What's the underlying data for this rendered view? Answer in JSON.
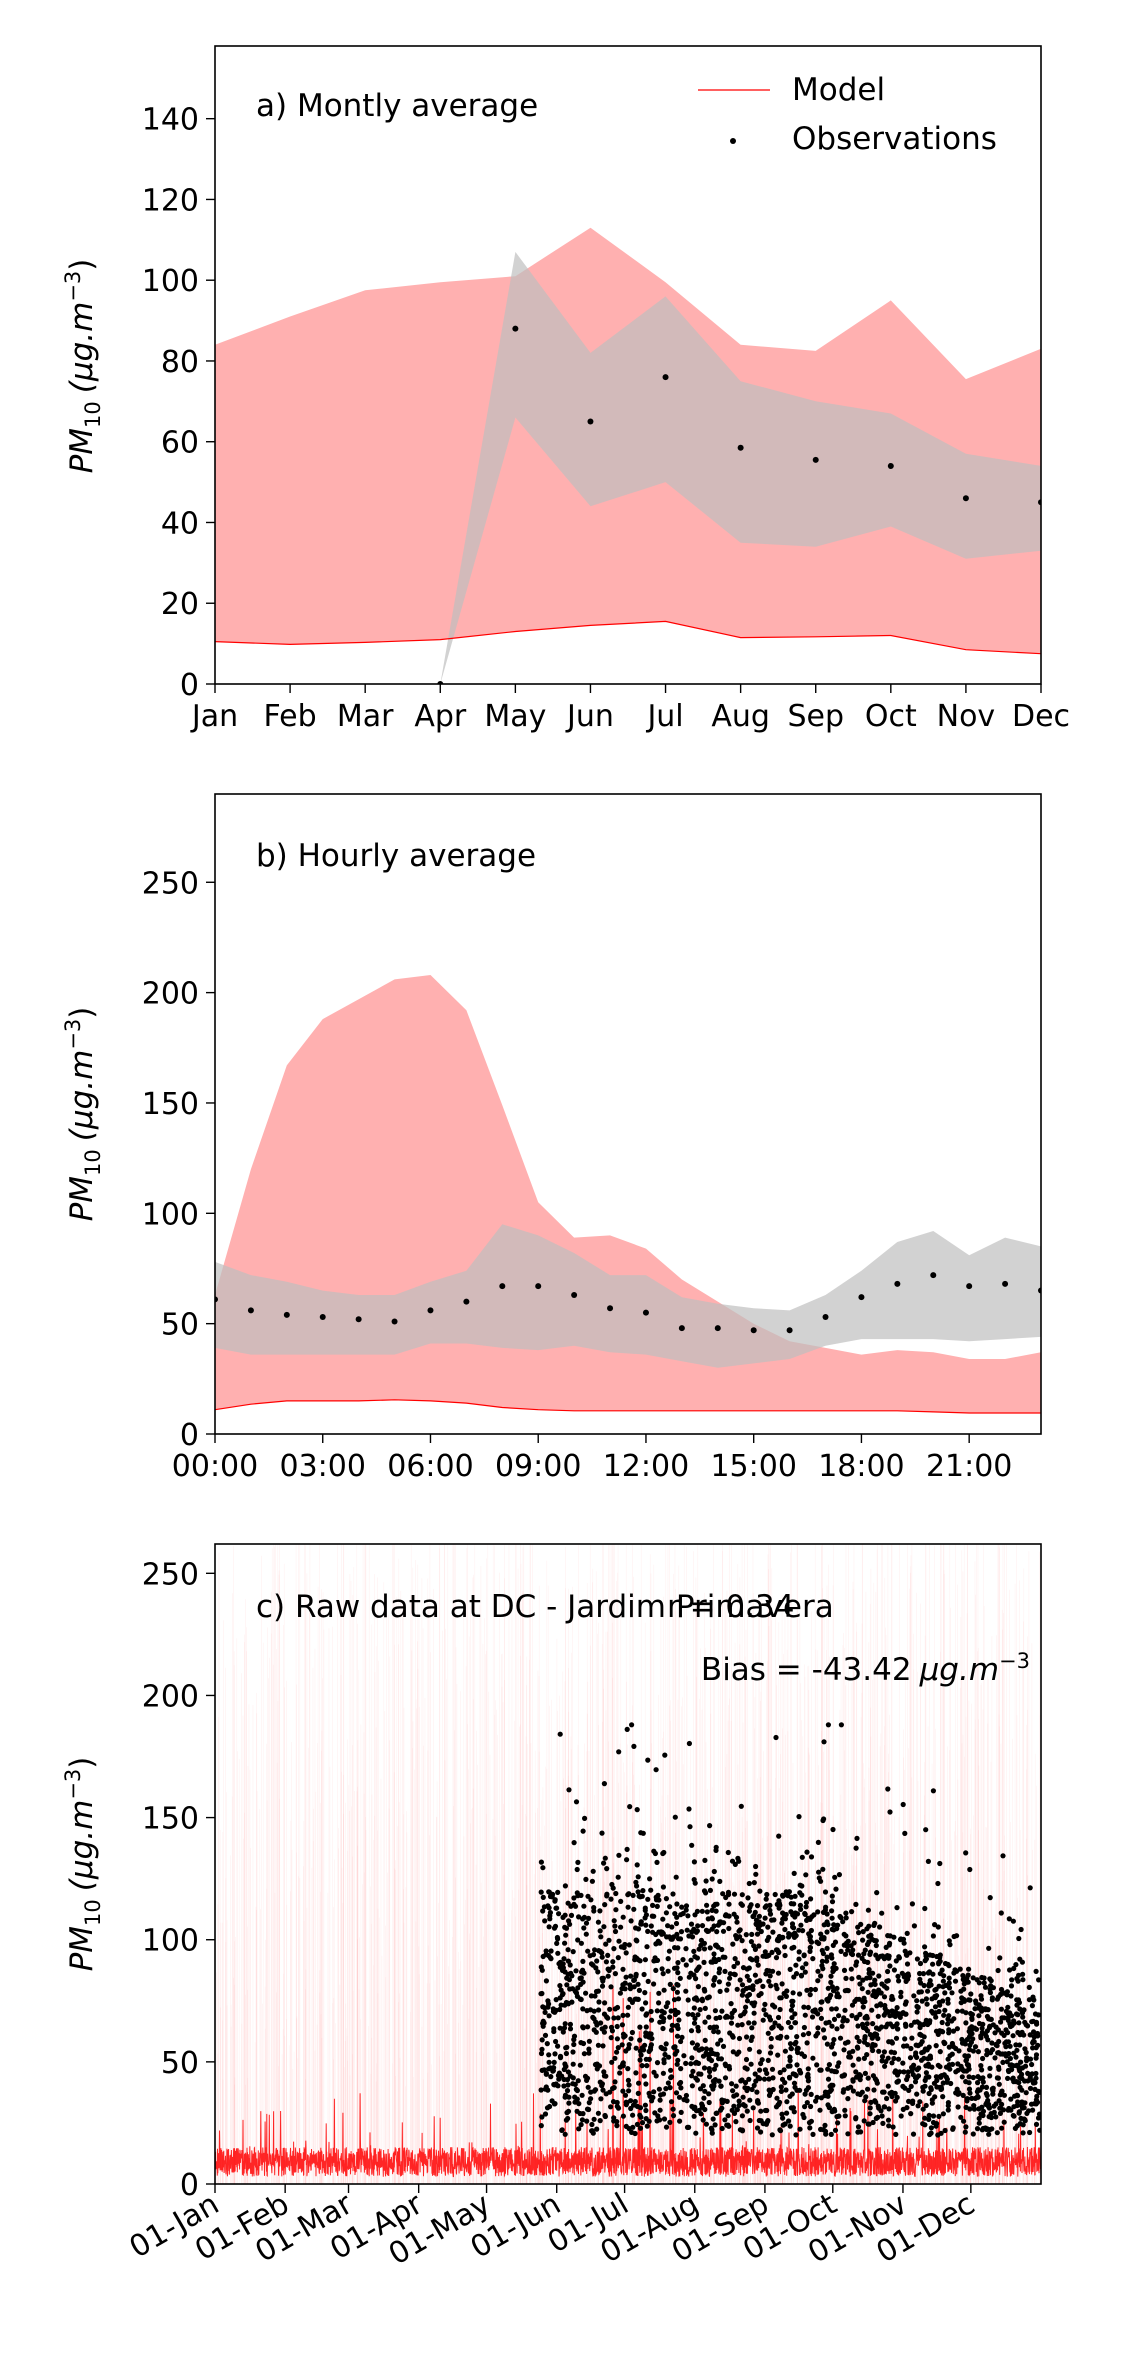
{
  "colors": {
    "model": "#ff0000",
    "model_band": "#ffb0b0",
    "obs_band": "#bfbfbf",
    "observations": "#000000"
  },
  "chart_data": [
    {
      "type": "area",
      "panel": "a",
      "annotation": "a) Montly average",
      "ylabel": "PM",
      "ylabel_sub": "10",
      "ylabel_unit": "(μg.m",
      "ylabel_sup": "−3",
      "ylabel_close": ")",
      "categories": [
        "Jan",
        "Feb",
        "Mar",
        "Apr",
        "May",
        "Jun",
        "Jul",
        "Aug",
        "Sep",
        "Oct",
        "Nov",
        "Dec"
      ],
      "ylim": [
        0,
        158
      ],
      "yticks": [
        0,
        20,
        40,
        60,
        80,
        100,
        120,
        140
      ],
      "legend": {
        "placement": "top-right",
        "model": "Model",
        "observations": "Observations"
      },
      "model_line": [
        10.5,
        9.8,
        10.3,
        11.0,
        13.0,
        14.5,
        15.5,
        11.5,
        11.7,
        12.0,
        8.5,
        7.5
      ],
      "model_upper": [
        84,
        91,
        97.5,
        99.5,
        101,
        113,
        99.5,
        84,
        82.5,
        95,
        75.5,
        83
      ],
      "obs_lower": [
        null,
        null,
        null,
        0,
        66,
        44,
        50,
        35,
        34,
        39,
        31,
        33
      ],
      "obs_upper": [
        null,
        null,
        null,
        0,
        107,
        82,
        96,
        75,
        70,
        67,
        57,
        54
      ],
      "obs_mean": [
        null,
        null,
        null,
        0,
        88,
        65,
        76,
        58.5,
        55.5,
        54,
        46,
        45
      ]
    },
    {
      "type": "area",
      "panel": "b",
      "annotation": "b) Hourly average",
      "ylabel": "PM",
      "ylabel_sub": "10",
      "ylabel_unit": "(μg.m",
      "ylabel_sup": "−3",
      "ylabel_close": ")",
      "x": [
        0,
        1,
        2,
        3,
        4,
        5,
        6,
        7,
        8,
        9,
        10,
        11,
        12,
        13,
        14,
        15,
        16,
        17,
        18,
        19,
        20,
        21,
        22,
        23
      ],
      "xticks": [
        "00:00",
        "03:00",
        "06:00",
        "09:00",
        "12:00",
        "15:00",
        "18:00",
        "21:00"
      ],
      "xtick_hours": [
        0,
        3,
        6,
        9,
        12,
        15,
        18,
        21
      ],
      "xlim": [
        0,
        23
      ],
      "ylim": [
        0,
        290
      ],
      "yticks": [
        0,
        50,
        100,
        150,
        200,
        250
      ],
      "model_line": [
        11,
        13.5,
        15,
        15,
        15,
        15.5,
        15,
        14,
        12,
        11,
        10.5,
        10.5,
        10.5,
        10.5,
        10.5,
        10.5,
        10.5,
        10.5,
        10.5,
        10.5,
        10,
        9.5,
        9.5,
        9.5
      ],
      "model_upper": [
        63,
        120,
        167,
        188,
        197,
        206,
        208,
        192,
        149,
        105,
        89,
        90,
        84,
        70,
        60,
        50,
        42,
        39,
        36,
        38,
        37,
        34,
        34,
        37
      ],
      "obs_lower": [
        39,
        36,
        36,
        36,
        36,
        36,
        41,
        41,
        39,
        38,
        40,
        37,
        36,
        33,
        30,
        32,
        34,
        40,
        43,
        43,
        43,
        42,
        43,
        44
      ],
      "obs_upper": [
        78,
        72,
        69,
        65,
        63,
        63,
        69,
        74,
        95,
        90,
        82,
        72,
        72,
        62,
        59,
        57,
        56,
        63,
        74,
        87,
        92,
        81,
        89,
        85
      ],
      "obs_mean": [
        61,
        56,
        54,
        53,
        52,
        51,
        56,
        60,
        67,
        67,
        63,
        57,
        55,
        48,
        48,
        47,
        47,
        53,
        62,
        68,
        72,
        67,
        68,
        65
      ]
    },
    {
      "type": "scatter",
      "panel": "c",
      "annotation": "c) Raw data at DC - Jardim Primavera",
      "r_label": "r = 0.34",
      "bias_label": "Bias = -43.42",
      "bias_unit": "μg.m",
      "bias_sup": "−3",
      "ylabel": "PM",
      "ylabel_sub": "10",
      "ylabel_unit": "(μg.m",
      "ylabel_sup": "−3",
      "ylabel_close": ")",
      "xticks": [
        "01-Jan",
        "01-Feb",
        "01-Mar",
        "01-Apr",
        "01-May",
        "01-Jun",
        "01-Jul",
        "01-Aug",
        "01-Sep",
        "01-Oct",
        "01-Nov",
        "01-Dec"
      ],
      "xtick_day_of_year": [
        1,
        32,
        60,
        91,
        121,
        152,
        182,
        213,
        244,
        274,
        305,
        335
      ],
      "xlim_day_of_year": [
        1,
        366
      ],
      "ylim": [
        0,
        262
      ],
      "yticks": [
        0,
        50,
        100,
        150,
        200,
        250
      ],
      "model_typical_range": [
        3,
        25
      ],
      "observations_start_day_of_year": 145,
      "observations_typical_range": [
        20,
        120
      ],
      "observations_max": 188
    }
  ]
}
